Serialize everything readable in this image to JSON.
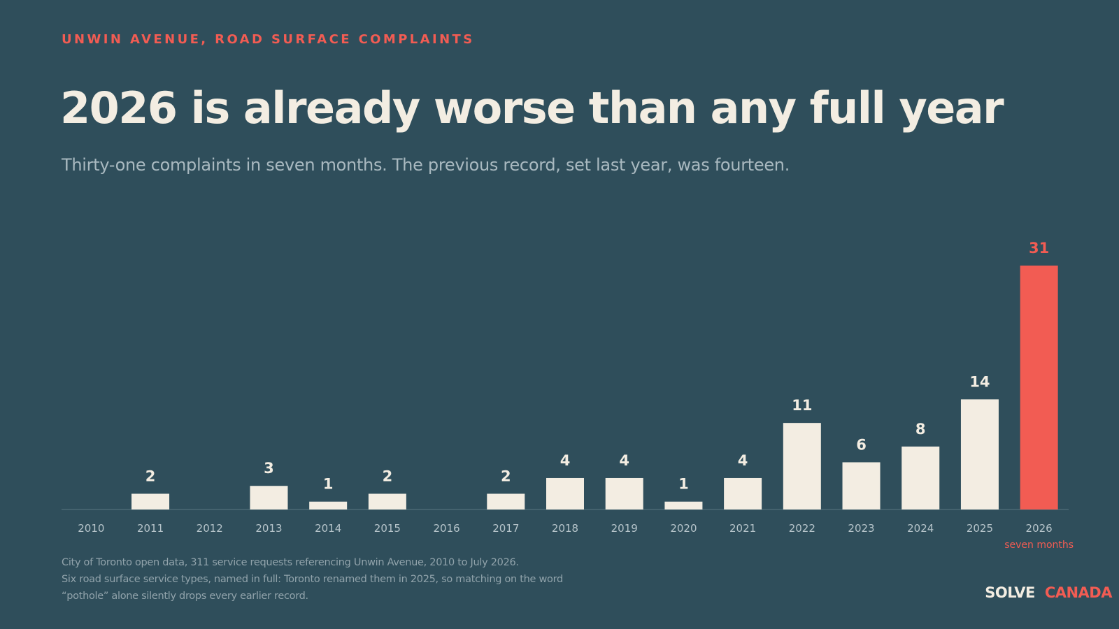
{
  "kicker": "UNWIN AVENUE, ROAD SURFACE COMPLAINTS",
  "headline": "2026 is already worse than any full year",
  "subhead": "Thirty-one complaints in seven months. The previous record, set last year, was fourteen.",
  "footnote": {
    "line1": "City of Toronto open data, 311 service requests referencing Unwin Avenue, 2010 to July 2026.",
    "line2": "Six road surface service types, named in full: Toronto renamed them in 2025, so matching on the word",
    "line3": "“pothole” alone silently drops every earlier record."
  },
  "brand": {
    "part1": "SOLVE",
    "part2": "CANADA"
  },
  "colors": {
    "background": "#2f4e5b",
    "bar": "#f3ede2",
    "highlight": "#f25c53",
    "axis_text": "#b6c4ca"
  },
  "chart_data": {
    "type": "bar",
    "categories": [
      "2010",
      "2011",
      "2012",
      "2013",
      "2014",
      "2015",
      "2016",
      "2017",
      "2018",
      "2019",
      "2020",
      "2021",
      "2022",
      "2023",
      "2024",
      "2025",
      "2026"
    ],
    "values": [
      0,
      2,
      0,
      3,
      1,
      2,
      0,
      2,
      4,
      4,
      1,
      4,
      11,
      6,
      8,
      14,
      31
    ],
    "labels": [
      "",
      "2",
      "",
      "3",
      "1",
      "2",
      "",
      "2",
      "4",
      "4",
      "1",
      "4",
      "11",
      "6",
      "8",
      "14",
      "31"
    ],
    "highlight_category": "2026",
    "highlight_note": "seven months",
    "ylim": [
      0,
      31
    ],
    "grid": false,
    "legend": "none"
  }
}
